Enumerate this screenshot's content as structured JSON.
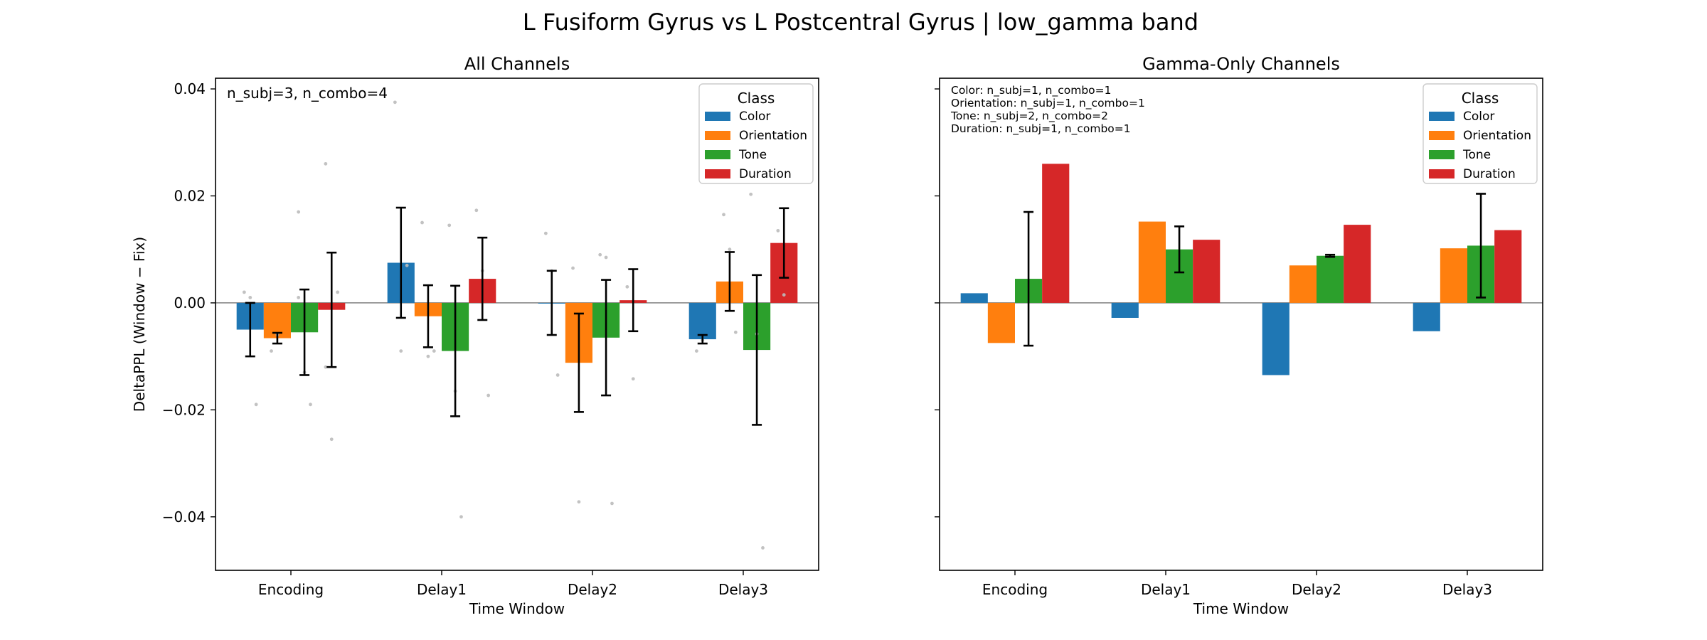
{
  "suptitle": "L Fusiform Gyrus vs L Postcentral Gyrus  |  low_gamma band",
  "colors": {
    "Color": "#1f77b4",
    "Orientation": "#ff7f0e",
    "Tone": "#2ca02c",
    "Duration": "#d62728"
  },
  "chart_data": [
    {
      "type": "bar",
      "title": "All Channels",
      "xlabel": "Time Window",
      "ylabel": "DeltaPPL (Window − Fix)",
      "ylim": [
        -0.05,
        0.042
      ],
      "yticks": [
        -0.04,
        -0.02,
        0.0,
        0.02,
        0.04
      ],
      "ytick_labels": [
        "−0.04",
        "−0.02",
        "0.00",
        "0.02",
        "0.04"
      ],
      "show_yticklabels": true,
      "categories": [
        "Encoding",
        "Delay1",
        "Delay2",
        "Delay3"
      ],
      "legend_title": "Class",
      "legend_position": "top-right",
      "annotation": [
        "n_subj=3, n_combo=4"
      ],
      "annotation_size": "large",
      "series": [
        {
          "name": "Color",
          "values": [
            -0.005,
            0.0075,
            0.0,
            -0.0068
          ],
          "errors": [
            0.005,
            0.0103,
            0.006,
            0.0008
          ]
        },
        {
          "name": "Orientation",
          "values": [
            -0.0066,
            -0.0025,
            -0.0112,
            0.004
          ],
          "errors": [
            0.001,
            0.0058,
            0.0092,
            0.0055
          ]
        },
        {
          "name": "Tone",
          "values": [
            -0.0055,
            -0.009,
            -0.0065,
            -0.0088
          ],
          "errors": [
            0.008,
            0.0122,
            0.0108,
            0.014
          ]
        },
        {
          "name": "Duration",
          "values": [
            -0.0013,
            0.0045,
            0.0005,
            0.0112
          ],
          "errors": [
            0.0107,
            0.0077,
            0.0058,
            0.0065
          ]
        }
      ],
      "points": [
        {
          "category": 0,
          "series": 0,
          "y": [
            0.002,
            0.001,
            -0.019
          ]
        },
        {
          "category": 0,
          "series": 1,
          "y": [
            -0.009,
            -0.006
          ]
        },
        {
          "category": 0,
          "series": 2,
          "y": [
            0.017,
            -0.013,
            -0.019,
            0.001
          ]
        },
        {
          "category": 0,
          "series": 3,
          "y": [
            0.026,
            -0.0255,
            0.002,
            -0.012
          ]
        },
        {
          "category": 1,
          "series": 0,
          "y": [
            0.0375,
            -0.009,
            0.007
          ]
        },
        {
          "category": 1,
          "series": 1,
          "y": [
            0.015,
            -0.01,
            -0.009
          ]
        },
        {
          "category": 1,
          "series": 2,
          "y": [
            0.0145,
            -0.0165,
            -0.04
          ]
        },
        {
          "category": 1,
          "series": 3,
          "y": [
            0.0173,
            0.006,
            -0.0173
          ]
        },
        {
          "category": 2,
          "series": 0,
          "y": [
            0.013,
            0.006,
            -0.0135
          ]
        },
        {
          "category": 2,
          "series": 1,
          "y": [
            0.0065,
            -0.0372
          ]
        },
        {
          "category": 2,
          "series": 2,
          "y": [
            0.009,
            0.0085,
            -0.0375
          ]
        },
        {
          "category": 2,
          "series": 3,
          "y": [
            0.003,
            -0.0142
          ]
        },
        {
          "category": 3,
          "series": 0,
          "y": [
            -0.009,
            -0.007
          ]
        },
        {
          "category": 3,
          "series": 1,
          "y": [
            0.0165,
            0.01,
            -0.0055
          ]
        },
        {
          "category": 3,
          "series": 2,
          "y": [
            0.0203,
            -0.0058,
            -0.0458
          ]
        },
        {
          "category": 3,
          "series": 3,
          "y": [
            0.0135,
            0.0015
          ]
        }
      ]
    },
    {
      "type": "bar",
      "title": "Gamma-Only Channels",
      "xlabel": "Time Window",
      "ylabel": "",
      "ylim": [
        -0.05,
        0.042
      ],
      "yticks": [
        -0.04,
        -0.02,
        0.0,
        0.02,
        0.04
      ],
      "ytick_labels": [],
      "show_yticklabels": false,
      "categories": [
        "Encoding",
        "Delay1",
        "Delay2",
        "Delay3"
      ],
      "legend_title": "Class",
      "legend_position": "top-right",
      "annotation": [
        "Color: n_subj=1, n_combo=1",
        "Orientation: n_subj=1, n_combo=1",
        "Tone: n_subj=2, n_combo=2",
        "Duration: n_subj=1, n_combo=1"
      ],
      "annotation_size": "small",
      "series": [
        {
          "name": "Color",
          "values": [
            0.0018,
            -0.0028,
            -0.0135,
            -0.0053
          ],
          "errors": [
            0,
            0,
            0,
            0
          ]
        },
        {
          "name": "Orientation",
          "values": [
            -0.0075,
            0.0152,
            0.007,
            0.0102
          ],
          "errors": [
            0,
            0,
            0,
            0
          ]
        },
        {
          "name": "Tone",
          "values": [
            0.0045,
            0.01,
            0.0088,
            0.0107
          ],
          "errors": [
            0.0125,
            0.0043,
            0.0002,
            0.0097
          ]
        },
        {
          "name": "Duration",
          "values": [
            0.026,
            0.0118,
            0.0146,
            0.0136
          ],
          "errors": [
            0,
            0,
            0,
            0
          ]
        }
      ],
      "points": []
    }
  ]
}
